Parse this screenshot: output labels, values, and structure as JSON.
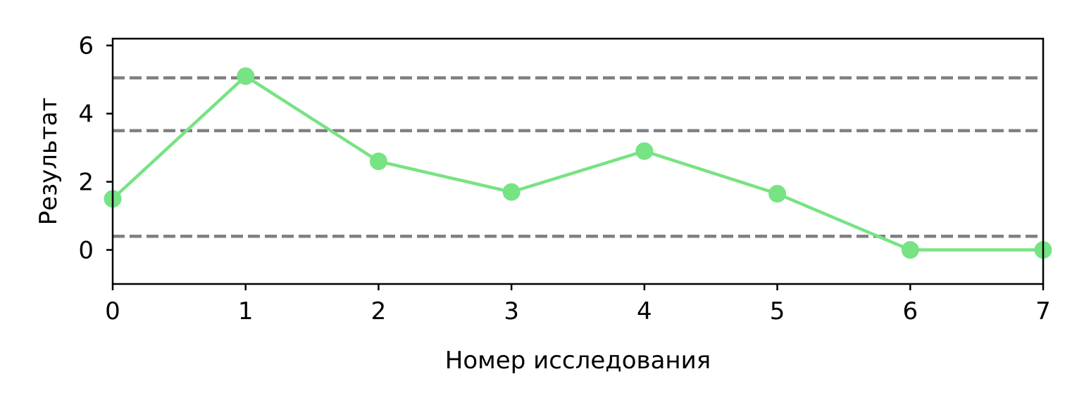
{
  "chart_data": {
    "type": "line",
    "title": "",
    "xlabel": "Номер исследования",
    "ylabel": "Результат",
    "xlim": [
      0,
      7
    ],
    "ylim": [
      -1,
      6.2
    ],
    "xticks": [
      "0",
      "1",
      "2",
      "3",
      "4",
      "5",
      "6",
      "7"
    ],
    "yticks": [
      "0",
      "2",
      "4",
      "6"
    ],
    "grid": false,
    "legend": "none",
    "series": [
      {
        "x": [
          0,
          1,
          2,
          3,
          4,
          5,
          6,
          7
        ],
        "values": [
          1.5,
          5.1,
          2.6,
          1.7,
          2.9,
          1.65,
          0.0,
          0.0
        ],
        "color": "#77e383",
        "marker": "circle"
      }
    ],
    "reference_lines": [
      {
        "y": 5.05,
        "style": "dashed",
        "color": "#808080"
      },
      {
        "y": 3.5,
        "style": "dashed",
        "color": "#808080"
      },
      {
        "y": 0.4,
        "style": "dashed",
        "color": "#808080"
      }
    ]
  }
}
